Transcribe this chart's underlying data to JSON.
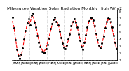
{
  "title": "Milwaukee Weather Solar Radiation Monthly High W/m2",
  "values": [
    650,
    580,
    430,
    280,
    180,
    140,
    160,
    250,
    380,
    500,
    600,
    650,
    620,
    700,
    730,
    660,
    590,
    480,
    380,
    310,
    250,
    220,
    230,
    280,
    350,
    430,
    510,
    590,
    650,
    680,
    660,
    620,
    540,
    440,
    360,
    300,
    280,
    300,
    370,
    450,
    550,
    620,
    660,
    650,
    580,
    490,
    400,
    310,
    270,
    330,
    430,
    540,
    630,
    680,
    670,
    640,
    560,
    460,
    370,
    290,
    260,
    320,
    420,
    530,
    620,
    670,
    660,
    620,
    540,
    430,
    330,
    250
  ],
  "dot_values": [
    700,
    550,
    390,
    250,
    160,
    120,
    180,
    270,
    400,
    520,
    620,
    680,
    590,
    730,
    760,
    630,
    560,
    450,
    350,
    290,
    220,
    200,
    210,
    260,
    320,
    410,
    540,
    610,
    670,
    700,
    640,
    590,
    510,
    420,
    340,
    280,
    260,
    310,
    400,
    470,
    580,
    640,
    680,
    630,
    560,
    470,
    380,
    290,
    250,
    350,
    460,
    560,
    650,
    700,
    690,
    660,
    580,
    480,
    390,
    310,
    270,
    340,
    440,
    550,
    640,
    690,
    680,
    640,
    560,
    450,
    350,
    260
  ],
  "num_years": 6,
  "months_per_year": 12,
  "ylim": [
    100,
    800
  ],
  "yticks": [
    100,
    200,
    300,
    400,
    500,
    600,
    700,
    800
  ],
  "ytick_labels": [
    "1",
    "2",
    "3",
    "4",
    "5",
    "6",
    "7",
    "8"
  ],
  "line_color": "#ff0000",
  "dot_color": "#000000",
  "background_color": "#ffffff",
  "grid_color": "#aaaaaa",
  "title_fontsize": 4.2,
  "tick_fontsize": 3.2
}
